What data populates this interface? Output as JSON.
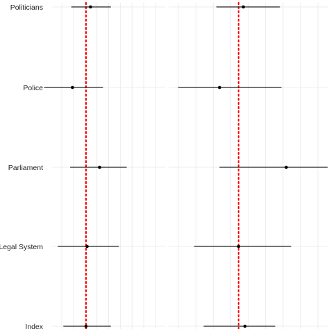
{
  "chart_data": {
    "type": "scatter",
    "style": "coefficient-plot",
    "categories": [
      "Politicians",
      "Police",
      "Parliament",
      "Legal System",
      "Index"
    ],
    "panels": [
      {
        "xlim": [
          0,
          1
        ],
        "reference_x": 0.3,
        "estimates": [
          0.34,
          0.18,
          0.42,
          0.31,
          0.3
        ],
        "ci_low": [
          0.17,
          -0.07,
          0.16,
          0.05,
          0.1
        ],
        "ci_high": [
          0.52,
          0.45,
          0.66,
          0.59,
          0.52
        ]
      },
      {
        "xlim": [
          0,
          1
        ],
        "reference_x": 0.44,
        "estimates": [
          0.47,
          0.32,
          0.74,
          0.44,
          0.48
        ],
        "ci_low": [
          0.3,
          0.06,
          0.32,
          0.16,
          0.22
        ],
        "ci_high": [
          0.7,
          0.71,
          1.0,
          0.77,
          0.67
        ]
      }
    ],
    "grid": true,
    "colors": {
      "reference_line": "#ff0000",
      "interval": "#222222",
      "point": "#000000"
    }
  }
}
